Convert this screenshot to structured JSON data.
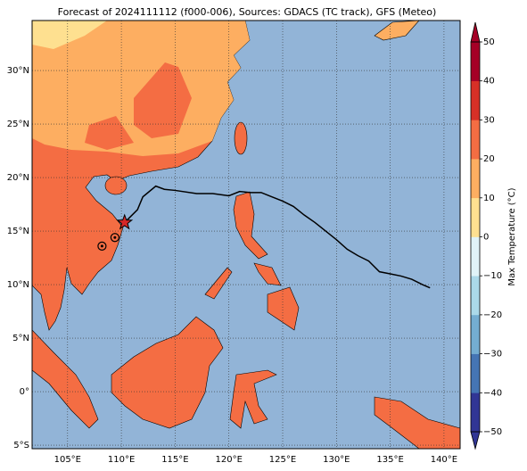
{
  "chart_data": {
    "type": "map",
    "title": "Forecast of 2024111112 (f000-006), Sources: GDACS (TC track), GFS (Meteo)",
    "xlim": [
      101.7,
      141.5
    ],
    "ylim": [
      -5.33,
      34.67
    ],
    "xticks": [
      {
        "value": 105,
        "label": "105°E"
      },
      {
        "value": 110,
        "label": "110°E"
      },
      {
        "value": 115,
        "label": "115°E"
      },
      {
        "value": 120,
        "label": "120°E"
      },
      {
        "value": 125,
        "label": "125°E"
      },
      {
        "value": 130,
        "label": "130°E"
      },
      {
        "value": 135,
        "label": "135°E"
      },
      {
        "value": 140,
        "label": "140°E"
      }
    ],
    "yticks": [
      {
        "value": 30,
        "label": "30°N"
      },
      {
        "value": 25,
        "label": "25°N"
      },
      {
        "value": 20,
        "label": "20°N"
      },
      {
        "value": 15,
        "label": "15°N"
      },
      {
        "value": 10,
        "label": "10°N"
      },
      {
        "value": 5,
        "label": "5°N"
      },
      {
        "value": 0,
        "label": "0°"
      },
      {
        "value": -5,
        "label": "5°S"
      }
    ],
    "grid": true,
    "track": {
      "color": "#000000",
      "lon": [
        110.3,
        111,
        111.5,
        112,
        113.2,
        114,
        115,
        117,
        118.5,
        120,
        121,
        122,
        123,
        124,
        125,
        126,
        127,
        128,
        129,
        130,
        131,
        132,
        133,
        134,
        135,
        136,
        137,
        138,
        138.7
      ],
      "lat": [
        15.8,
        16.5,
        17,
        18.2,
        19.2,
        18.9,
        18.8,
        18.5,
        18.5,
        18.3,
        18.7,
        18.6,
        18.6,
        18.2,
        17.8,
        17.3,
        16.5,
        15.8,
        15,
        14.2,
        13.3,
        12.7,
        12.2,
        11.2,
        11,
        10.8,
        10.5,
        10,
        9.7
      ]
    },
    "current_position": {
      "lon": 110.3,
      "lat": 15.8,
      "color": "#d62728"
    },
    "past_positions": {
      "lon": [
        108.2,
        109.4
      ],
      "lat": [
        13.6,
        14.4
      ]
    },
    "colorbar": {
      "label": "Max Temperature (°C)",
      "lim": [
        -50,
        50
      ],
      "ticks": [
        {
          "value": 50,
          "label": "50"
        },
        {
          "value": 40,
          "label": "40"
        },
        {
          "value": 30,
          "label": "30"
        },
        {
          "value": 20,
          "label": "20"
        },
        {
          "value": 10,
          "label": "10"
        },
        {
          "value": 0,
          "label": "0"
        },
        {
          "value": -10,
          "label": "−10"
        },
        {
          "value": -20,
          "label": "−20"
        },
        {
          "value": -30,
          "label": "−30"
        },
        {
          "value": -40,
          "label": "−40"
        },
        {
          "value": -50,
          "label": "−50"
        }
      ],
      "colors": [
        "#313695",
        "#4575b4",
        "#74add1",
        "#abd9e9",
        "#e0f3f8",
        "#fee090",
        "#fdae61",
        "#f46d43",
        "#d73027",
        "#a50026"
      ]
    }
  }
}
